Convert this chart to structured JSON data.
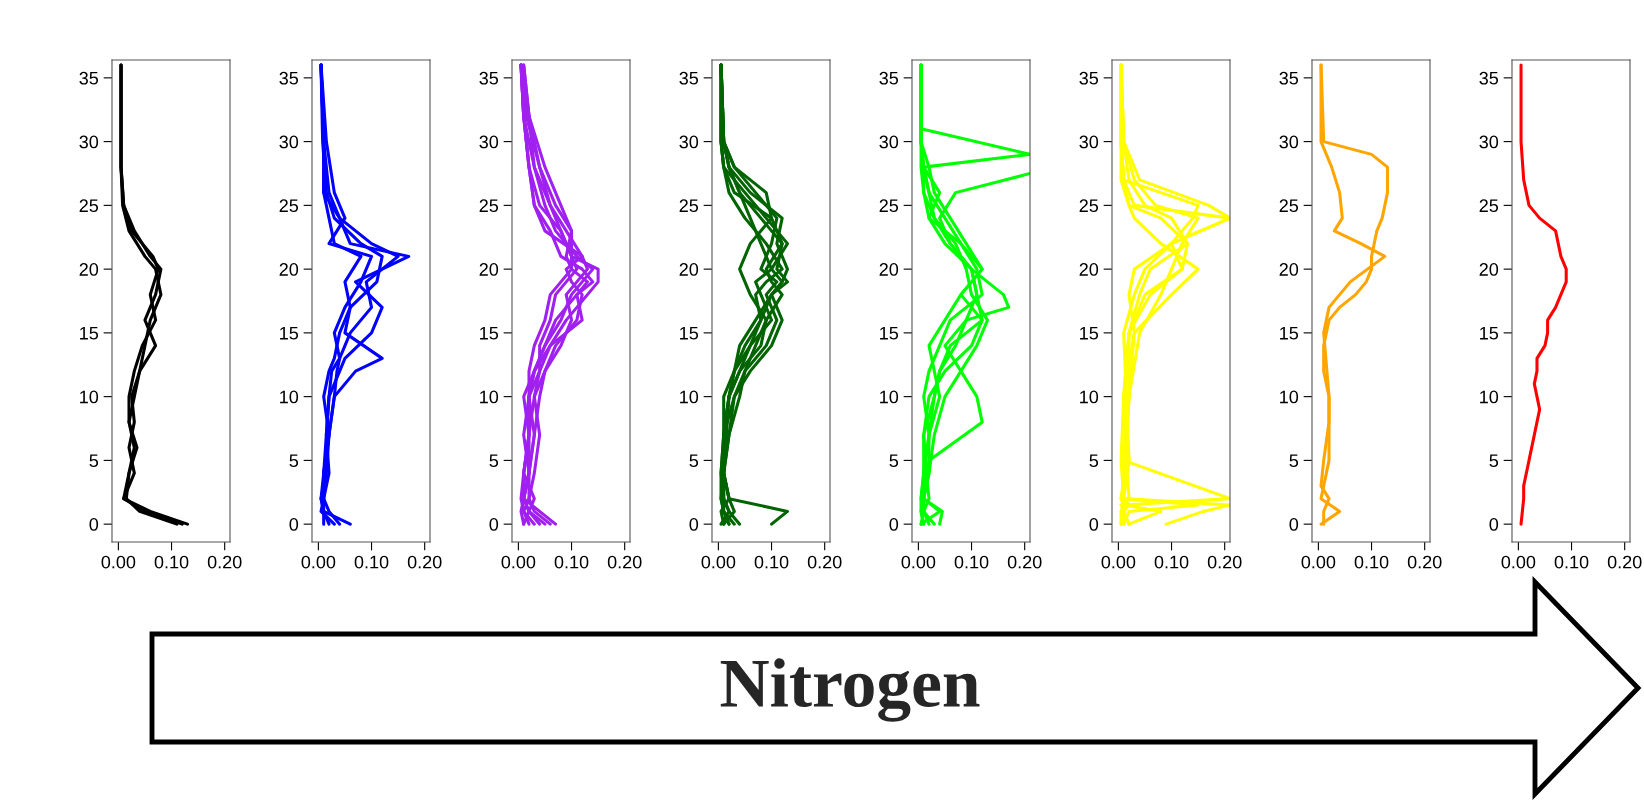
{
  "chart_data": [
    {
      "type": "line",
      "xlim": [
        -0.012,
        0.21
      ],
      "ylim": [
        -1.4,
        36.4
      ],
      "xticks": [
        {
          "value": 0,
          "label": "0.00"
        },
        {
          "value": 0.1,
          "label": "0.10"
        },
        {
          "value": 0.2,
          "label": "0.20"
        }
      ],
      "yticks": [
        0,
        5,
        10,
        15,
        20,
        25,
        30,
        35
      ],
      "grid": false,
      "annotations": [
        "Nitrogen"
      ],
      "series": [
        {
          "color": "#000000",
          "x": [
            0.13,
            0.06,
            0.01,
            0.02,
            0.03,
            0.02,
            0.03,
            0.04,
            0.07,
            0.05,
            0.07,
            0.08,
            0.06,
            0.03,
            0.01,
            0.005,
            0.005
          ],
          "values": [
            0,
            1,
            2,
            4,
            6,
            8,
            10,
            12,
            14,
            16,
            18,
            20,
            21,
            23,
            25,
            28,
            36
          ]
        },
        {
          "color": "#000000",
          "x": [
            0.12,
            0.05,
            0.01,
            0.03,
            0.02,
            0.03,
            0.025,
            0.04,
            0.05,
            0.06,
            0.08,
            0.07,
            0.05,
            0.02,
            0.008,
            0.005,
            0.005
          ],
          "values": [
            0,
            1,
            2,
            4,
            6,
            8,
            10,
            12,
            14,
            16,
            18,
            20,
            21,
            23,
            25,
            28,
            36
          ]
        },
        {
          "color": "#000000",
          "x": [
            0.11,
            0.04,
            0.015,
            0.02,
            0.035,
            0.02,
            0.02,
            0.03,
            0.045,
            0.07,
            0.06,
            0.075,
            0.065,
            0.025,
            0.01,
            0.005,
            0.005
          ],
          "values": [
            0,
            1,
            2,
            4,
            6,
            8,
            10,
            12,
            14,
            16,
            18,
            20,
            21,
            23,
            25,
            28,
            36
          ]
        }
      ]
    },
    {
      "type": "line",
      "xlim": [
        -0.012,
        0.21
      ],
      "ylim": [
        -1.4,
        36.4
      ],
      "xticks": [
        {
          "value": 0,
          "label": "0.00"
        },
        {
          "value": 0.1,
          "label": "0.10"
        },
        {
          "value": 0.2,
          "label": "0.20"
        }
      ],
      "yticks": [
        0,
        5,
        10,
        15,
        20,
        25,
        30,
        35
      ],
      "grid": false,
      "series": [
        {
          "color": "#0000ff",
          "x": [
            0.04,
            0.02,
            0.01,
            0.01,
            0.02,
            0.03,
            0.07,
            0.12,
            0.05,
            0.06,
            0.05,
            0.08,
            0.03,
            0.02,
            0.01,
            0.01,
            0.005
          ],
          "values": [
            0,
            1,
            2,
            4,
            7,
            10,
            12,
            13,
            15,
            17,
            19,
            21,
            22,
            24,
            26,
            30,
            36
          ]
        },
        {
          "color": "#0000ff",
          "x": [
            0.06,
            0.01,
            0.005,
            0.01,
            0.015,
            0.02,
            0.04,
            0.05,
            0.1,
            0.12,
            0.07,
            0.17,
            0.06,
            0.04,
            0.02,
            0.01,
            0.005
          ],
          "values": [
            0,
            1,
            2,
            4,
            7,
            10,
            12,
            13,
            15,
            17,
            19,
            21,
            22,
            24,
            26,
            30,
            36
          ]
        },
        {
          "color": "#0000ff",
          "x": [
            0.02,
            0.01,
            0.005,
            0.015,
            0.02,
            0.01,
            0.02,
            0.03,
            0.04,
            0.06,
            0.11,
            0.12,
            0.08,
            0.03,
            0.015,
            0.008,
            0.005
          ],
          "values": [
            0,
            1,
            2,
            4,
            7,
            10,
            12,
            13,
            15,
            17,
            19,
            21,
            22,
            24,
            26,
            30,
            36
          ]
        },
        {
          "color": "#0000ff",
          "x": [
            0.01,
            0.01,
            0.01,
            0.02,
            0.015,
            0.02,
            0.025,
            0.04,
            0.06,
            0.1,
            0.09,
            0.15,
            0.1,
            0.04,
            0.01,
            0.01,
            0.005
          ],
          "values": [
            0,
            1,
            2,
            4,
            7,
            10,
            12,
            13,
            15,
            17,
            19,
            21,
            22,
            24,
            26,
            30,
            36
          ]
        },
        {
          "color": "#0000ff",
          "x": [
            0.03,
            0.005,
            0.01,
            0.01,
            0.02,
            0.03,
            0.035,
            0.04,
            0.03,
            0.05,
            0.08,
            0.1,
            0.02,
            0.05,
            0.03,
            0.015,
            0.005
          ],
          "values": [
            0,
            1,
            2,
            4,
            7,
            10,
            12,
            13,
            15,
            17,
            19,
            21,
            22,
            24,
            26,
            30,
            36
          ]
        }
      ]
    },
    {
      "type": "line",
      "xlim": [
        -0.012,
        0.21
      ],
      "ylim": [
        -1.4,
        36.4
      ],
      "xticks": [
        {
          "value": 0,
          "label": "0.00"
        },
        {
          "value": 0.1,
          "label": "0.10"
        },
        {
          "value": 0.2,
          "label": "0.20"
        }
      ],
      "yticks": [
        0,
        5,
        10,
        15,
        20,
        25,
        30,
        35
      ],
      "grid": false,
      "series": [
        {
          "color": "#a020f0",
          "x": [
            0.07,
            0.04,
            0.01,
            0.02,
            0.03,
            0.02,
            0.04,
            0.06,
            0.09,
            0.13,
            0.15,
            0.15,
            0.1,
            0.08,
            0.04,
            0.02,
            0.01,
            0.005
          ],
          "values": [
            0,
            1,
            2,
            4,
            7,
            10,
            12,
            14,
            16,
            18,
            19,
            20,
            21,
            23,
            25,
            28,
            32,
            36
          ]
        },
        {
          "color": "#a020f0",
          "x": [
            0.03,
            0.01,
            0.005,
            0.01,
            0.02,
            0.02,
            0.03,
            0.05,
            0.08,
            0.1,
            0.12,
            0.14,
            0.11,
            0.07,
            0.05,
            0.03,
            0.01,
            0.005
          ],
          "values": [
            0,
            1,
            2,
            4,
            7,
            10,
            12,
            14,
            16,
            18,
            19,
            20,
            21,
            23,
            25,
            28,
            32,
            36
          ]
        },
        {
          "color": "#a020f0",
          "x": [
            0.01,
            0.02,
            0.03,
            0.01,
            0.02,
            0.03,
            0.04,
            0.04,
            0.06,
            0.07,
            0.09,
            0.11,
            0.1,
            0.1,
            0.07,
            0.04,
            0.02,
            0.01
          ],
          "values": [
            0,
            1,
            2,
            4,
            7,
            10,
            12,
            14,
            16,
            18,
            19,
            20,
            21,
            23,
            25,
            28,
            32,
            36
          ]
        },
        {
          "color": "#a020f0",
          "x": [
            0.05,
            0.02,
            0.01,
            0.02,
            0.01,
            0.02,
            0.03,
            0.05,
            0.07,
            0.11,
            0.14,
            0.12,
            0.08,
            0.06,
            0.03,
            0.02,
            0.01,
            0.005
          ],
          "values": [
            0,
            1,
            2,
            4,
            7,
            10,
            12,
            14,
            16,
            18,
            19,
            20,
            21,
            23,
            25,
            28,
            32,
            36
          ]
        },
        {
          "color": "#a020f0",
          "x": [
            0.02,
            0.01,
            0.02,
            0.03,
            0.04,
            0.03,
            0.05,
            0.07,
            0.11,
            0.12,
            0.1,
            0.09,
            0.12,
            0.09,
            0.06,
            0.03,
            0.02,
            0.01
          ],
          "values": [
            0,
            1,
            2,
            4,
            7,
            10,
            12,
            14,
            16,
            18,
            19,
            20,
            21,
            23,
            25,
            28,
            32,
            36
          ]
        },
        {
          "color": "#a020f0",
          "x": [
            0.04,
            0.02,
            0.01,
            0.01,
            0.02,
            0.02,
            0.02,
            0.03,
            0.05,
            0.06,
            0.08,
            0.1,
            0.09,
            0.1,
            0.08,
            0.05,
            0.02,
            0.005
          ],
          "values": [
            0,
            1,
            2,
            4,
            7,
            10,
            12,
            14,
            16,
            18,
            19,
            20,
            21,
            23,
            25,
            28,
            32,
            36
          ]
        },
        {
          "color": "#a020f0",
          "x": [
            0.01,
            0.005,
            0.01,
            0.02,
            0.03,
            0.04,
            0.05,
            0.08,
            0.1,
            0.09,
            0.11,
            0.13,
            0.12,
            0.05,
            0.03,
            0.02,
            0.01,
            0.005
          ],
          "values": [
            0,
            1,
            2,
            4,
            7,
            10,
            12,
            14,
            16,
            18,
            19,
            20,
            21,
            23,
            25,
            28,
            32,
            36
          ]
        },
        {
          "color": "#a020f0",
          "x": [
            0.06,
            0.03,
            0.02,
            0.02,
            0.02,
            0.01,
            0.03,
            0.06,
            0.12,
            0.11,
            0.13,
            0.1,
            0.1,
            0.08,
            0.06,
            0.04,
            0.015,
            0.005
          ],
          "values": [
            0,
            1,
            2,
            4,
            7,
            10,
            12,
            14,
            16,
            18,
            19,
            20,
            21,
            23,
            25,
            28,
            32,
            36
          ]
        }
      ]
    },
    {
      "type": "line",
      "xlim": [
        -0.012,
        0.21
      ],
      "ylim": [
        -1.4,
        36.4
      ],
      "xticks": [
        {
          "value": 0,
          "label": "0.00"
        },
        {
          "value": 0.1,
          "label": "0.10"
        },
        {
          "value": 0.2,
          "label": "0.20"
        }
      ],
      "yticks": [
        0,
        5,
        10,
        15,
        20,
        25,
        30,
        35
      ],
      "grid": false,
      "series": [
        {
          "color": "#006400",
          "x": [
            0.1,
            0.13,
            0.02,
            0.01,
            0.02,
            0.03,
            0.06,
            0.1,
            0.12,
            0.1,
            0.13,
            0.11,
            0.12,
            0.1,
            0.03,
            0.01,
            0.005,
            0.005
          ],
          "values": [
            0,
            1,
            2,
            4,
            7,
            10,
            12,
            14,
            16,
            18,
            19,
            20,
            22,
            24,
            26,
            28,
            30,
            36
          ]
        },
        {
          "color": "#006400",
          "x": [
            0.04,
            0.02,
            0.01,
            0.01,
            0.01,
            0.02,
            0.03,
            0.05,
            0.08,
            0.1,
            0.12,
            0.13,
            0.11,
            0.12,
            0.06,
            0.02,
            0.01,
            0.005
          ],
          "values": [
            0,
            1,
            2,
            4,
            7,
            10,
            12,
            14,
            16,
            18,
            19,
            20,
            22,
            24,
            26,
            28,
            30,
            36
          ]
        },
        {
          "color": "#006400",
          "x": [
            0.02,
            0.01,
            0.005,
            0.01,
            0.02,
            0.04,
            0.05,
            0.07,
            0.09,
            0.12,
            0.1,
            0.09,
            0.12,
            0.08,
            0.04,
            0.02,
            0.01,
            0.005
          ],
          "values": [
            0,
            1,
            2,
            4,
            7,
            10,
            12,
            14,
            16,
            18,
            19,
            20,
            22,
            24,
            26,
            28,
            30,
            36
          ]
        },
        {
          "color": "#006400",
          "x": [
            0.01,
            0.03,
            0.02,
            0.01,
            0.01,
            0.02,
            0.04,
            0.06,
            0.1,
            0.08,
            0.07,
            0.1,
            0.13,
            0.09,
            0.05,
            0.01,
            0.005,
            0.005
          ],
          "values": [
            0,
            1,
            2,
            4,
            7,
            10,
            12,
            14,
            16,
            18,
            19,
            20,
            22,
            24,
            26,
            28,
            30,
            36
          ]
        },
        {
          "color": "#006400",
          "x": [
            0.03,
            0.01,
            0.01,
            0.005,
            0.01,
            0.03,
            0.05,
            0.09,
            0.11,
            0.09,
            0.11,
            0.08,
            0.1,
            0.11,
            0.07,
            0.03,
            0.01,
            0.005
          ],
          "values": [
            0,
            1,
            2,
            4,
            7,
            10,
            12,
            14,
            16,
            18,
            19,
            20,
            22,
            24,
            26,
            28,
            30,
            36
          ]
        },
        {
          "color": "#006400",
          "x": [
            0.005,
            0.02,
            0.01,
            0.01,
            0.015,
            0.02,
            0.03,
            0.04,
            0.07,
            0.1,
            0.12,
            0.1,
            0.08,
            0.06,
            0.04,
            0.02,
            0.01,
            0.005
          ],
          "values": [
            0,
            1,
            2,
            4,
            7,
            10,
            12,
            14,
            16,
            18,
            19,
            20,
            22,
            24,
            26,
            28,
            30,
            36
          ]
        },
        {
          "color": "#006400",
          "x": [
            0.02,
            0.01,
            0.005,
            0.005,
            0.01,
            0.02,
            0.04,
            0.08,
            0.09,
            0.06,
            0.05,
            0.04,
            0.06,
            0.1,
            0.09,
            0.03,
            0.01,
            0.005
          ],
          "values": [
            0,
            1,
            2,
            4,
            7,
            10,
            12,
            14,
            16,
            18,
            19,
            20,
            22,
            24,
            26,
            28,
            30,
            36
          ]
        },
        {
          "color": "#006400",
          "x": [
            0.01,
            0.005,
            0.02,
            0.01,
            0.01,
            0.01,
            0.03,
            0.06,
            0.08,
            0.07,
            0.09,
            0.12,
            0.09,
            0.05,
            0.02,
            0.01,
            0.005,
            0.005
          ],
          "values": [
            0,
            1,
            2,
            4,
            7,
            10,
            12,
            14,
            16,
            18,
            19,
            20,
            22,
            24,
            26,
            28,
            30,
            36
          ]
        }
      ]
    },
    {
      "type": "line",
      "xlim": [
        -0.012,
        0.21
      ],
      "ylim": [
        -1.4,
        36.4
      ],
      "xticks": [
        {
          "value": 0,
          "label": "0.00"
        },
        {
          "value": 0.1,
          "label": "0.10"
        },
        {
          "value": 0.2,
          "label": "0.20"
        }
      ],
      "yticks": [
        0,
        5,
        10,
        15,
        20,
        25,
        30,
        35
      ],
      "grid": false,
      "series": [
        {
          "color": "#00ff00",
          "x": [
            0.04,
            0.045,
            0.01,
            0.02,
            0.12,
            0.11,
            0.08,
            0.05,
            0.09,
            0.17,
            0.16,
            0.1,
            0.06,
            0.03,
            0.02,
            0.01,
            0.21,
            0.005,
            0.005
          ],
          "values": [
            0,
            1,
            2,
            5,
            8,
            10,
            12,
            14,
            16,
            17,
            18,
            20,
            22,
            24,
            26,
            28,
            29,
            31,
            36
          ]
        },
        {
          "color": "#00ff00",
          "x": [
            0.005,
            0.04,
            0.01,
            0.01,
            0.02,
            0.03,
            0.04,
            0.06,
            0.12,
            0.11,
            0.1,
            0.06,
            0.04,
            0.07,
            0.21
          ],
          "values": [
            0,
            1,
            2,
            4,
            7,
            10,
            12,
            14,
            16,
            18,
            20,
            22,
            24,
            26,
            27.5
          ]
        },
        {
          "color": "#00ff00",
          "x": [
            0.01,
            0.005,
            0.01,
            0.02,
            0.03,
            0.05,
            0.08,
            0.11,
            0.13,
            0.1,
            0.09,
            0.07,
            0.03,
            0.01,
            0.01,
            0.005,
            0.005
          ],
          "values": [
            0,
            1,
            2,
            4,
            7,
            10,
            12,
            14,
            16,
            18,
            20,
            22,
            24,
            26,
            28,
            30,
            36
          ]
        },
        {
          "color": "#00ff00",
          "x": [
            0.02,
            0.01,
            0.005,
            0.01,
            0.01,
            0.02,
            0.05,
            0.1,
            0.12,
            0.08,
            0.12,
            0.08,
            0.05,
            0.02,
            0.01,
            0.005,
            0.005
          ],
          "values": [
            0,
            1,
            2,
            4,
            7,
            10,
            12,
            14,
            16,
            18,
            20,
            22,
            24,
            26,
            28,
            30,
            36
          ]
        },
        {
          "color": "#00ff00",
          "x": [
            0.005,
            0.01,
            0.02,
            0.015,
            0.01,
            0.03,
            0.04,
            0.07,
            0.09,
            0.11,
            0.1,
            0.05,
            0.02,
            0.04,
            0.01,
            0.005,
            0.005
          ],
          "values": [
            0,
            1,
            2,
            4,
            7,
            10,
            12,
            14,
            16,
            18,
            20,
            22,
            24,
            26,
            28,
            30,
            36
          ]
        },
        {
          "color": "#00ff00",
          "x": [
            0.03,
            0.01,
            0.01,
            0.02,
            0.02,
            0.04,
            0.03,
            0.02,
            0.05,
            0.08,
            0.12,
            0.09,
            0.06,
            0.03,
            0.02,
            0.005,
            0.005
          ],
          "values": [
            0,
            1,
            2,
            4,
            7,
            10,
            12,
            14,
            16,
            18,
            20,
            22,
            24,
            26,
            28,
            30,
            36
          ]
        },
        {
          "color": "#00ff00",
          "x": [
            0.01,
            0.005,
            0.005,
            0.01,
            0.02,
            0.01,
            0.02,
            0.04,
            0.06,
            0.12,
            0.11,
            0.08,
            0.02,
            0.01,
            0.005,
            0.005,
            0.005
          ],
          "values": [
            0,
            1,
            2,
            4,
            7,
            10,
            12,
            14,
            16,
            18,
            20,
            22,
            24,
            26,
            28,
            30,
            36
          ]
        }
      ]
    },
    {
      "type": "line",
      "xlim": [
        -0.012,
        0.21
      ],
      "ylim": [
        -1.4,
        36.4
      ],
      "xticks": [
        {
          "value": 0,
          "label": "0.00"
        },
        {
          "value": 0.1,
          "label": "0.10"
        },
        {
          "value": 0.2,
          "label": "0.20"
        }
      ],
      "yticks": [
        0,
        5,
        10,
        15,
        20,
        25,
        30,
        35
      ],
      "grid": false,
      "series": [
        {
          "color": "#ffff00",
          "x": [
            0.09,
            0.16,
            0.21,
            0.01,
            0.02,
            0.01,
            0.03,
            0.1,
            0.15,
            0.08,
            0.03,
            0.02,
            0.01,
            0.005,
            0.005
          ],
          "values": [
            0,
            1,
            1.5,
            2,
            5,
            10,
            15,
            18,
            20,
            22,
            24,
            25,
            27,
            30,
            36
          ]
        },
        {
          "color": "#ffff00",
          "x": [
            0.02,
            0.08,
            0.01,
            0.21,
            0.01,
            0.02,
            0.02,
            0.05,
            0.12,
            0.13,
            0.1,
            0.05,
            0.02,
            0.01,
            0.005
          ],
          "values": [
            0,
            1,
            1.5,
            2,
            5,
            10,
            15,
            18,
            20,
            22,
            24,
            25,
            27,
            30,
            36
          ]
        },
        {
          "color": "#ffff00",
          "x": [
            0.01,
            0.02,
            0.15,
            0.005,
            0.015,
            0.02,
            0.04,
            0.08,
            0.1,
            0.12,
            0.15,
            0.07,
            0.03,
            0.01,
            0.005
          ],
          "values": [
            0,
            1,
            1.5,
            2,
            5,
            10,
            15,
            18,
            20,
            22,
            24,
            25,
            27,
            30,
            36
          ]
        },
        {
          "color": "#ffff00",
          "x": [
            0.005,
            0.005,
            0.01,
            0.01,
            0.01,
            0.02,
            0.03,
            0.02,
            0.03,
            0.1,
            0.21,
            0.03,
            0.01,
            0.005,
            0.005
          ],
          "values": [
            0,
            1,
            1.5,
            2,
            5,
            10,
            15,
            18,
            20,
            22,
            24,
            25,
            27,
            30,
            36
          ]
        },
        {
          "color": "#ffff00",
          "x": [
            0.01,
            0.01,
            0.005,
            0.02,
            0.015,
            0.01,
            0.02,
            0.06,
            0.12,
            0.1,
            0.21,
            0.17,
            0.04,
            0.01,
            0.005
          ],
          "values": [
            0,
            1,
            1.5,
            2,
            5,
            10,
            15,
            18,
            20,
            22,
            24,
            25,
            27,
            30,
            36
          ]
        },
        {
          "color": "#ffff00",
          "x": [
            0.02,
            0.01,
            0.01,
            0.005,
            0.02,
            0.015,
            0.01,
            0.03,
            0.05,
            0.1,
            0.14,
            0.15,
            0.01,
            0.005,
            0.005
          ],
          "values": [
            0,
            1,
            1.5,
            2,
            5,
            10,
            15,
            18,
            20,
            22,
            24,
            25,
            27,
            30,
            36
          ]
        },
        {
          "color": "#ffff00",
          "x": [
            0.005,
            0.01,
            0.02,
            0.01,
            0.005,
            0.01,
            0.02,
            0.04,
            0.06,
            0.13,
            0.08,
            0.02,
            0.005,
            0.005,
            0.005
          ],
          "values": [
            0,
            1,
            1.5,
            2,
            5,
            10,
            15,
            18,
            20,
            22,
            24,
            25,
            27,
            30,
            36
          ]
        }
      ]
    },
    {
      "type": "line",
      "xlim": [
        -0.012,
        0.21
      ],
      "ylim": [
        -1.4,
        36.4
      ],
      "xticks": [
        {
          "value": 0,
          "label": "0.00"
        },
        {
          "value": 0.1,
          "label": "0.10"
        },
        {
          "value": 0.2,
          "label": "0.20"
        }
      ],
      "yticks": [
        0,
        5,
        10,
        15,
        20,
        25,
        30,
        35
      ],
      "grid": false,
      "series": [
        {
          "color": "#ffa500",
          "x": [
            0.01,
            0.01,
            0.02,
            0.005,
            0.01,
            0.02,
            0.02,
            0.01,
            0.01,
            0.02,
            0.04,
            0.07,
            0.09,
            0.1,
            0.1,
            0.105,
            0.11,
            0.12,
            0.13,
            0.13,
            0.1,
            0.01,
            0.005
          ],
          "values": [
            0,
            1,
            2,
            3,
            5,
            8,
            10,
            12,
            14,
            16,
            17,
            18,
            19,
            20,
            21,
            22,
            23,
            24,
            26,
            28,
            29,
            30,
            36
          ]
        },
        {
          "color": "#ffa500",
          "x": [
            0.005,
            0.04,
            0.005,
            0.02,
            0.02,
            0.01,
            0.02,
            0.06,
            0.125,
            0.08,
            0.03,
            0.045,
            0.04,
            0.025,
            0.005,
            0.005
          ],
          "values": [
            0,
            1,
            2,
            5,
            10,
            15,
            17,
            19,
            21,
            22,
            23,
            24,
            26,
            28,
            30,
            36
          ]
        }
      ]
    },
    {
      "type": "line",
      "xlim": [
        -0.012,
        0.21
      ],
      "ylim": [
        -1.4,
        36.4
      ],
      "xticks": [
        {
          "value": 0,
          "label": "0.00"
        },
        {
          "value": 0.1,
          "label": "0.10"
        },
        {
          "value": 0.2,
          "label": "0.20"
        }
      ],
      "yticks": [
        0,
        5,
        10,
        15,
        20,
        25,
        30,
        35
      ],
      "grid": false,
      "series": [
        {
          "color": "#ff0000",
          "x": [
            0.005,
            0.01,
            0.01,
            0.02,
            0.03,
            0.04,
            0.035,
            0.03,
            0.035,
            0.035,
            0.05,
            0.055,
            0.055,
            0.07,
            0.09,
            0.09,
            0.08,
            0.07,
            0.04,
            0.02,
            0.015,
            0.01,
            0.005,
            0.005
          ],
          "values": [
            0,
            2,
            3,
            5,
            7,
            9,
            10,
            11,
            12,
            13,
            14,
            15,
            16,
            17,
            19,
            20,
            21,
            23,
            24,
            25,
            26,
            27,
            30,
            36
          ]
        }
      ]
    }
  ]
}
